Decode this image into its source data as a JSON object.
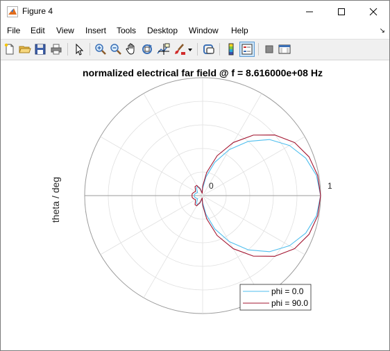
{
  "window": {
    "title": "Figure 4",
    "minimize_icon": "minimize-icon",
    "maximize_icon": "maximize-icon",
    "close_icon": "close-icon",
    "app_icon": "matlab-icon"
  },
  "menubar": {
    "items": [
      "File",
      "Edit",
      "View",
      "Insert",
      "Tools",
      "Desktop",
      "Window",
      "Help"
    ],
    "overflow_icon": "dock-arrow-icon"
  },
  "toolbar": {
    "icons": [
      "new-figure-icon",
      "open-file-icon",
      "save-icon",
      "print-icon",
      "pointer-icon",
      "zoom-in-icon",
      "zoom-out-icon",
      "pan-icon",
      "rotate-3d-icon",
      "data-cursor-icon",
      "brush-icon",
      "link-plot-icon",
      "colorbar-icon",
      "legend-icon",
      "hide-plot-tools-icon",
      "show-plot-tools-icon"
    ]
  },
  "chart_data": {
    "type": "polar",
    "title": "normalized electrical far field @ f = 8.616000e+08 Hz",
    "ylabel": "theta / deg",
    "rlim": [
      0,
      1
    ],
    "rticks": [
      "0",
      "1"
    ],
    "angular_spokes_deg": 30,
    "radial_rings": 5,
    "grid": true,
    "legend_position": "bottom-right",
    "series": [
      {
        "name": "phi = 0.0",
        "color": "#4dbeee",
        "theta_deg": [
          0,
          10,
          20,
          30,
          40,
          50,
          60,
          70,
          80,
          90,
          100,
          110,
          120,
          130,
          140,
          150,
          160,
          170,
          180,
          190,
          200,
          210,
          220,
          230,
          240,
          250,
          260,
          270,
          280,
          290,
          300,
          310,
          320,
          330,
          340,
          350,
          360
        ],
        "r": [
          1.0,
          0.98,
          0.93,
          0.85,
          0.74,
          0.6,
          0.45,
          0.3,
          0.16,
          0.06,
          0.03,
          0.07,
          0.09,
          0.08,
          0.06,
          0.05,
          0.06,
          0.07,
          0.07,
          0.07,
          0.06,
          0.05,
          0.06,
          0.08,
          0.09,
          0.07,
          0.03,
          0.06,
          0.16,
          0.3,
          0.45,
          0.6,
          0.74,
          0.85,
          0.93,
          0.98,
          1.0
        ]
      },
      {
        "name": "phi = 90.0",
        "color": "#a2142f",
        "theta_deg": [
          0,
          10,
          20,
          30,
          40,
          50,
          60,
          70,
          80,
          90,
          100,
          110,
          120,
          130,
          140,
          150,
          160,
          170,
          180,
          190,
          200,
          210,
          220,
          230,
          240,
          250,
          260,
          270,
          280,
          290,
          300,
          310,
          320,
          330,
          340,
          350,
          360
        ],
        "r": [
          1.0,
          0.99,
          0.96,
          0.9,
          0.8,
          0.67,
          0.52,
          0.36,
          0.2,
          0.08,
          0.02,
          0.06,
          0.1,
          0.1,
          0.08,
          0.07,
          0.08,
          0.09,
          0.09,
          0.09,
          0.08,
          0.07,
          0.08,
          0.1,
          0.1,
          0.06,
          0.02,
          0.08,
          0.2,
          0.36,
          0.52,
          0.67,
          0.8,
          0.9,
          0.96,
          0.99,
          1.0
        ]
      }
    ]
  }
}
